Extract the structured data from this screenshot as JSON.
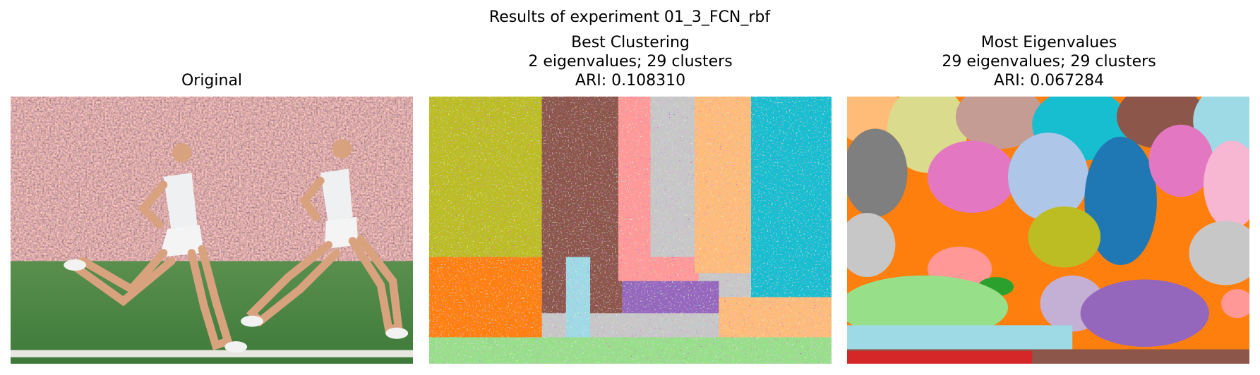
{
  "title": "Results of experiment 01_3_FCN_rbf",
  "panels": [
    {
      "title_lines": [
        "Original"
      ]
    },
    {
      "title_lines": [
        "Best Clustering",
        "2 eigenvalues; 29 clusters",
        "ARI: 0.108310"
      ]
    },
    {
      "title_lines": [
        "Most Eigenvalues",
        "29 eigenvalues; 29 clusters",
        "ARI: 0.067284"
      ]
    }
  ]
}
